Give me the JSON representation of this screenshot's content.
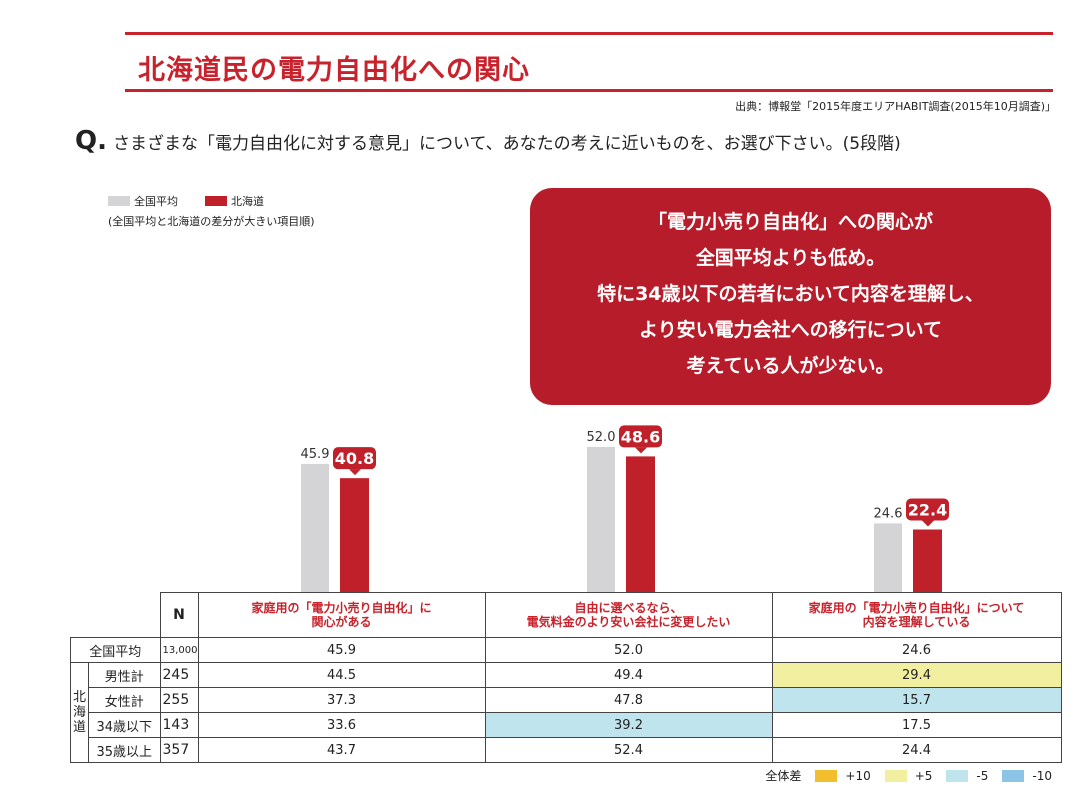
{
  "title": "北海道民の電力自由化への関心",
  "source": "出典：博報堂「2015年度エリアHABIT調査(2015年10月調査)」",
  "question": {
    "mark": "Q.",
    "text": "さまざまな「電力自由化に対する意見」について、あなたの考えに近いものを、お選び下さい。(5段階)"
  },
  "legend": {
    "national": "全国平均",
    "hokkaido": "北海道",
    "note": "(全国平均と北海道の差分が大きい項目順)"
  },
  "callout": [
    "「電力小売り自由化」への関心が",
    "全国平均よりも低め。",
    "特に34歳以下の若者において内容を理解し、",
    "より安い電力会社への移行について",
    "考えている人が少ない。"
  ],
  "colors": {
    "national": "#d4d4d6",
    "hokkaido": "#c0202a",
    "plus10": "#f2be2e",
    "plus5": "#f2f0a0",
    "minus5": "#bfe4ee",
    "minus10": "#8ec3e8"
  },
  "chart_data": {
    "type": "bar",
    "categories": [
      "家庭用の「電力小売り自由化」に関心がある",
      "自由に選べるなら、電気料金のより安い会社に変更したい",
      "家庭用の「電力小売り自由化」について内容を理解している"
    ],
    "series": [
      {
        "name": "全国平均",
        "values": [
          45.9,
          52.0,
          24.6
        ]
      },
      {
        "name": "北海道",
        "values": [
          40.8,
          48.6,
          22.4
        ]
      }
    ],
    "ylim": [
      0,
      60
    ]
  },
  "table": {
    "n_header": "N",
    "headers": [
      [
        "家庭用の「電力小売り自由化」に",
        "関心がある"
      ],
      [
        "自由に選べるなら、",
        "電気料金のより安い会社に変更したい"
      ],
      [
        "家庭用の「電力小売り自由化」について",
        "内容を理解している"
      ]
    ],
    "group_label": "北海道",
    "rows": [
      {
        "label": "全国平均",
        "n": "13,000",
        "values": [
          "45.9",
          "52.0",
          "24.6"
        ],
        "hl": [
          "",
          "",
          ""
        ]
      },
      {
        "label": "男性計",
        "n": "245",
        "values": [
          "44.5",
          "49.4",
          "29.4"
        ],
        "hl": [
          "",
          "",
          "plus5"
        ]
      },
      {
        "label": "女性計",
        "n": "255",
        "values": [
          "37.3",
          "47.8",
          "15.7"
        ],
        "hl": [
          "",
          "",
          "minus5"
        ]
      },
      {
        "label": "34歳以下",
        "n": "143",
        "values": [
          "33.6",
          "39.2",
          "17.5"
        ],
        "hl": [
          "",
          "minus5",
          ""
        ]
      },
      {
        "label": "35歳以上",
        "n": "357",
        "values": [
          "43.7",
          "52.4",
          "24.4"
        ],
        "hl": [
          "",
          "",
          ""
        ]
      }
    ]
  },
  "diff_legend": {
    "label": "全体差",
    "items": [
      {
        "key": "plus10",
        "text": "+10"
      },
      {
        "key": "plus5",
        "text": "+5"
      },
      {
        "key": "minus5",
        "text": "-5"
      },
      {
        "key": "minus10",
        "text": "-10"
      }
    ]
  }
}
